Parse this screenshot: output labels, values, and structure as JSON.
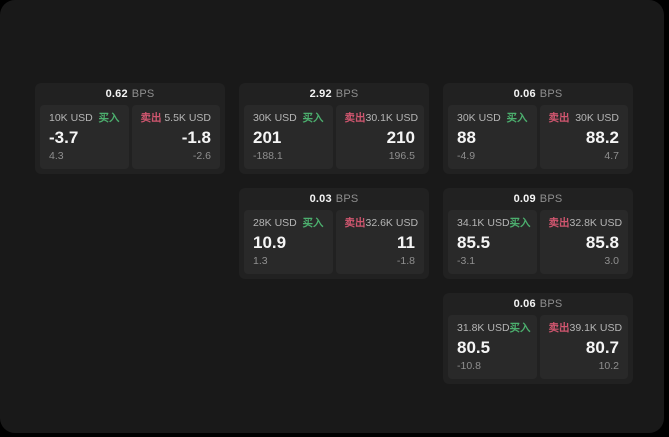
{
  "colors": {
    "page_bg": "#000000",
    "window_bg": "#191919",
    "card_bg": "#212121",
    "panel_bg": "#292929",
    "text_primary": "#f5f5f5",
    "text_muted": "#8f8f8f",
    "text_size": "#b5b5b5",
    "buy_green": "#4caf6e",
    "sell_red": "#d0566f"
  },
  "labels": {
    "bps_unit": "BPS",
    "buy": "买入",
    "sell": "卖出"
  },
  "cards": [
    {
      "row": 1,
      "col": 1,
      "bps": "0.62",
      "buy": {
        "size": "10K USD",
        "value": "-3.7",
        "sub": "4.3"
      },
      "sell": {
        "size": "5.5K USD",
        "value": "-1.8",
        "sub": "-2.6"
      }
    },
    {
      "row": 1,
      "col": 2,
      "bps": "2.92",
      "buy": {
        "size": "30K USD",
        "value": "201",
        "sub": "-188.1"
      },
      "sell": {
        "size": "30.1K USD",
        "value": "210",
        "sub": "196.5"
      }
    },
    {
      "row": 1,
      "col": 3,
      "bps": "0.06",
      "buy": {
        "size": "30K USD",
        "value": "88",
        "sub": "-4.9"
      },
      "sell": {
        "size": "30K USD",
        "value": "88.2",
        "sub": "4.7"
      }
    },
    {
      "row": 2,
      "col": 2,
      "bps": "0.03",
      "buy": {
        "size": "28K USD",
        "value": "10.9",
        "sub": "1.3"
      },
      "sell": {
        "size": "32.6K USD",
        "value": "11",
        "sub": "-1.8"
      }
    },
    {
      "row": 2,
      "col": 3,
      "bps": "0.09",
      "buy": {
        "size": "34.1K USD",
        "value": "85.5",
        "sub": "-3.1"
      },
      "sell": {
        "size": "32.8K USD",
        "value": "85.8",
        "sub": "3.0"
      }
    },
    {
      "row": 3,
      "col": 3,
      "bps": "0.06",
      "buy": {
        "size": "31.8K USD",
        "value": "80.5",
        "sub": "-10.8"
      },
      "sell": {
        "size": "39.1K USD",
        "value": "80.7",
        "sub": "10.2"
      }
    }
  ]
}
